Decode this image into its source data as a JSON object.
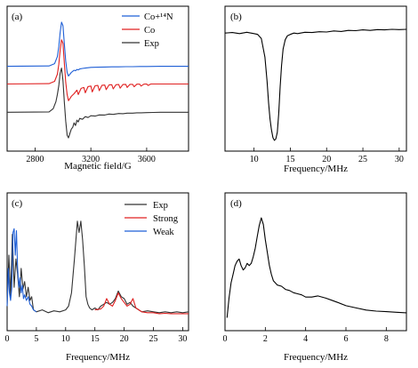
{
  "chart_data": [
    {
      "panel": "(a)",
      "type": "line",
      "xlabel": "Magnetic field/G",
      "ylabel": "",
      "xlim": [
        2600,
        3900
      ],
      "xticks": [
        2800,
        3200,
        3600
      ],
      "legend_position": "top-right",
      "series": [
        {
          "name": "Co+¹⁴N",
          "color": "#1f5fd6",
          "offset": 2.6,
          "x": [
            2600,
            2900,
            2940,
            2960,
            2970,
            2980,
            2990,
            3000,
            3010,
            3020,
            3030,
            3040,
            3050,
            3060,
            3070,
            3080,
            3090,
            3100,
            3110,
            3120,
            3140,
            3160,
            3180,
            3200,
            3250,
            3300,
            3350,
            3400,
            3450,
            3500,
            3550,
            3600,
            3700,
            3800,
            3900
          ],
          "y": [
            0,
            0.02,
            0.15,
            0.55,
            1.1,
            1.9,
            2.5,
            2.3,
            1.3,
            0.3,
            -0.35,
            -0.55,
            -0.45,
            -0.35,
            -0.28,
            -0.22,
            -0.25,
            -0.18,
            -0.2,
            -0.15,
            -0.12,
            -0.1,
            -0.08,
            -0.06,
            -0.05,
            -0.04,
            -0.03,
            -0.03,
            -0.02,
            -0.02,
            -0.01,
            -0.01,
            0,
            0,
            0
          ]
        },
        {
          "name": "Co",
          "color": "#e02020",
          "offset": 1.6,
          "x": [
            2600,
            2900,
            2940,
            2960,
            2970,
            2980,
            2990,
            3000,
            3010,
            3020,
            3030,
            3040,
            3060,
            3080,
            3100,
            3110,
            3130,
            3150,
            3160,
            3180,
            3200,
            3210,
            3230,
            3250,
            3260,
            3280,
            3300,
            3310,
            3330,
            3350,
            3360,
            3380,
            3400,
            3410,
            3430,
            3450,
            3460,
            3480,
            3500,
            3510,
            3530,
            3550,
            3560,
            3580,
            3600,
            3610,
            3630,
            3650,
            3700,
            3800,
            3900
          ],
          "y": [
            0,
            0.02,
            0.15,
            0.55,
            1.1,
            1.9,
            2.5,
            2.3,
            1.2,
            0.1,
            -0.6,
            -0.95,
            -0.7,
            -0.55,
            -0.35,
            -0.6,
            -0.25,
            -0.2,
            -0.5,
            -0.15,
            -0.12,
            -0.45,
            -0.1,
            -0.08,
            -0.38,
            -0.07,
            -0.06,
            -0.32,
            -0.05,
            -0.04,
            -0.28,
            -0.04,
            -0.03,
            -0.24,
            -0.03,
            -0.02,
            -0.2,
            -0.02,
            -0.02,
            -0.16,
            -0.01,
            -0.01,
            -0.12,
            -0.01,
            0,
            -0.08,
            0,
            0,
            0,
            0,
            0
          ]
        },
        {
          "name": "Exp",
          "color": "#333333",
          "offset": 0,
          "x": [
            2600,
            2900,
            2930,
            2950,
            2960,
            2970,
            2980,
            2990,
            3000,
            3010,
            3020,
            3030,
            3040,
            3050,
            3060,
            3070,
            3080,
            3090,
            3100,
            3110,
            3120,
            3140,
            3160,
            3180,
            3200,
            3230,
            3260,
            3300,
            3330,
            3360,
            3400,
            3430,
            3460,
            3500,
            3530,
            3560,
            3600,
            3650,
            3700,
            3800,
            3900
          ],
          "y": [
            0,
            0.02,
            0.2,
            0.6,
            1.0,
            1.5,
            2.2,
            2.5,
            1.8,
            0.6,
            -0.5,
            -1.3,
            -1.45,
            -1.2,
            -0.95,
            -0.85,
            -0.6,
            -0.75,
            -0.45,
            -0.55,
            -0.35,
            -0.4,
            -0.25,
            -0.3,
            -0.2,
            -0.22,
            -0.15,
            -0.16,
            -0.1,
            -0.12,
            -0.07,
            -0.08,
            -0.05,
            -0.05,
            -0.03,
            -0.03,
            -0.02,
            -0.01,
            0,
            0,
            0
          ]
        }
      ]
    },
    {
      "panel": "(b)",
      "type": "line",
      "xlabel": "Frequency/MHz",
      "ylabel": "",
      "xlim": [
        6,
        31
      ],
      "xticks": [
        10,
        15,
        20,
        25,
        30
      ],
      "series": [
        {
          "name": "",
          "color": "#000000",
          "x": [
            6,
            7,
            8,
            9,
            10,
            10.5,
            11,
            11.5,
            11.8,
            12.0,
            12.2,
            12.4,
            12.6,
            12.8,
            13.0,
            13.2,
            13.4,
            13.6,
            13.8,
            14.0,
            14.3,
            14.6,
            15,
            15.5,
            16,
            17,
            18,
            19,
            20,
            21,
            22,
            23,
            24,
            25,
            26,
            27,
            28,
            29,
            30,
            31
          ],
          "y": [
            0,
            0.02,
            -0.02,
            0.03,
            -0.02,
            -0.05,
            -0.2,
            -0.9,
            -1.8,
            -2.6,
            -3.2,
            -3.6,
            -3.9,
            -4.0,
            -3.95,
            -3.7,
            -3.0,
            -2.0,
            -1.2,
            -0.6,
            -0.25,
            -0.1,
            -0.05,
            0.0,
            -0.02,
            0.03,
            0.02,
            0.05,
            0.04,
            0.08,
            0.06,
            0.1,
            0.09,
            0.12,
            0.1,
            0.13,
            0.12,
            0.14,
            0.13,
            0.14
          ]
        }
      ]
    },
    {
      "panel": "(c)",
      "type": "line",
      "xlabel": "Frequency/MHz",
      "ylabel": "",
      "xlim": [
        0,
        31
      ],
      "xticks": [
        0,
        5,
        10,
        15,
        20,
        25,
        30
      ],
      "legend_position": "top-right",
      "series": [
        {
          "name": "Exp",
          "color": "#333333",
          "x": [
            0,
            0.3,
            0.6,
            0.9,
            1.2,
            1.5,
            1.8,
            2.1,
            2.4,
            2.7,
            3.0,
            3.3,
            3.6,
            3.9,
            4.2,
            4.5,
            5,
            6,
            7,
            8,
            9,
            10,
            10.5,
            11,
            11.5,
            12,
            12.3,
            12.6,
            12.9,
            13.2,
            13.5,
            13.8,
            14.1,
            14.5,
            15,
            15.5,
            16,
            16.5,
            17,
            17.5,
            18,
            18.5,
            19,
            19.5,
            20,
            20.5,
            21,
            21.5,
            22,
            22.5,
            23,
            24,
            25,
            26,
            27,
            28,
            29,
            30,
            31
          ],
          "y": [
            0.5,
            3.2,
            1.0,
            4.3,
            1.5,
            3.0,
            2.2,
            1.0,
            2.5,
            1.4,
            1.8,
            1.0,
            1.5,
            0.8,
            1.0,
            0.3,
            0.2,
            0.3,
            0.15,
            0.25,
            0.2,
            0.3,
            0.5,
            1.2,
            3.0,
            5.0,
            4.4,
            5.0,
            4.0,
            2.6,
            1.0,
            0.6,
            0.4,
            0.3,
            0.4,
            0.3,
            0.5,
            0.6,
            0.7,
            0.6,
            0.7,
            0.9,
            1.3,
            1.0,
            0.9,
            0.6,
            0.7,
            0.5,
            0.4,
            0.3,
            0.2,
            0.25,
            0.2,
            0.15,
            0.2,
            0.15,
            0.2,
            0.15,
            0.2
          ]
        },
        {
          "name": "Strong",
          "color": "#e02020",
          "x": [
            15,
            16,
            16.5,
            17,
            17.5,
            18,
            18.5,
            19,
            19.5,
            20,
            20.5,
            21,
            21.5,
            22,
            22.5,
            23,
            24,
            25,
            26,
            27,
            28,
            29,
            30,
            31
          ],
          "y": [
            0.3,
            0.35,
            0.5,
            0.9,
            0.6,
            0.5,
            0.8,
            1.2,
            0.9,
            0.7,
            0.5,
            0.6,
            0.9,
            0.4,
            0.3,
            0.2,
            0.15,
            0.15,
            0.1,
            0.12,
            0.1,
            0.1,
            0.1,
            0.1
          ]
        },
        {
          "name": "Weak",
          "color": "#1f5fd6",
          "x": [
            0,
            0.2,
            0.4,
            0.6,
            0.8,
            1.0,
            1.2,
            1.4,
            1.6,
            1.8,
            2.0,
            2.2,
            2.4,
            2.6,
            2.8,
            3.0,
            3.3,
            3.6,
            3.9,
            4.2,
            4.5,
            5
          ],
          "y": [
            0.5,
            2.5,
            1.2,
            0.8,
            1.5,
            4.4,
            4.6,
            3.2,
            4.5,
            2.5,
            1.5,
            2.0,
            1.2,
            1.6,
            0.9,
            1.1,
            0.8,
            1.0,
            0.6,
            0.5,
            0.3,
            0.2
          ]
        }
      ]
    },
    {
      "panel": "(d)",
      "type": "line",
      "xlabel": "Frequency/MHz",
      "ylabel": "",
      "xlim": [
        0,
        9
      ],
      "xticks": [
        0,
        2,
        4,
        6,
        8
      ],
      "series": [
        {
          "name": "",
          "color": "#000000",
          "x": [
            0.1,
            0.2,
            0.3,
            0.4,
            0.5,
            0.6,
            0.7,
            0.8,
            0.9,
            1.0,
            1.1,
            1.2,
            1.3,
            1.4,
            1.5,
            1.6,
            1.7,
            1.8,
            1.9,
            2.0,
            2.1,
            2.2,
            2.3,
            2.4,
            2.6,
            2.8,
            3.0,
            3.2,
            3.4,
            3.6,
            3.8,
            4.0,
            4.3,
            4.6,
            5.0,
            5.3,
            5.6,
            6.0,
            6.5,
            7.0,
            7.5,
            8.0,
            8.5,
            9.0
          ],
          "y": [
            0.0,
            1.8,
            3.2,
            4.0,
            4.8,
            5.2,
            5.4,
            4.8,
            4.4,
            4.6,
            5.0,
            4.8,
            5.0,
            5.6,
            6.4,
            7.5,
            8.5,
            9.2,
            8.6,
            7.2,
            6.0,
            4.8,
            4.0,
            3.4,
            3.0,
            2.9,
            2.6,
            2.5,
            2.3,
            2.2,
            2.1,
            1.9,
            1.9,
            2.0,
            1.8,
            1.6,
            1.4,
            1.1,
            0.9,
            0.7,
            0.6,
            0.55,
            0.5,
            0.45
          ]
        }
      ]
    }
  ]
}
